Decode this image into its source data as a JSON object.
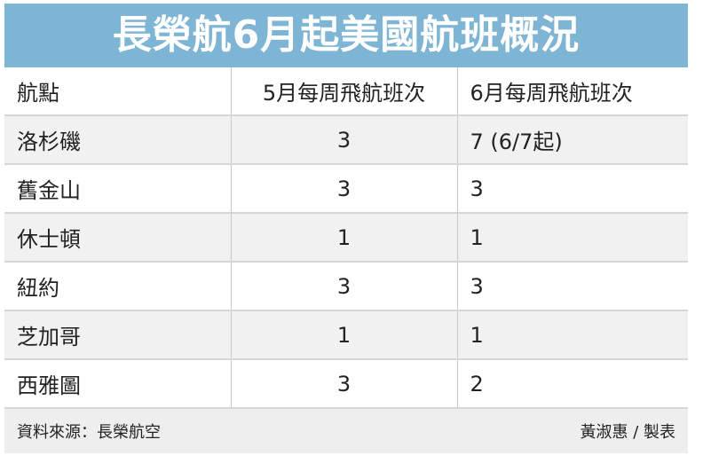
{
  "title": "長榮航6月起美國航班概況",
  "table": {
    "headers": [
      "航點",
      "5月每周飛航班次",
      "6月每周飛航班次"
    ],
    "rows": [
      [
        "洛杉磯",
        "3",
        "7 (6/7起)"
      ],
      [
        "舊金山",
        "3",
        "3"
      ],
      [
        "休士頓",
        "1",
        "1"
      ],
      [
        "紐約",
        "3",
        "3"
      ],
      [
        "芝加哥",
        "1",
        "1"
      ],
      [
        "西雅圖",
        "3",
        "2"
      ]
    ]
  },
  "footer": {
    "source": "資料來源：長榮航空",
    "credit": "黃淑惠 / 製表"
  },
  "colors": {
    "title_bg": "#7eb4d4",
    "alt_row": "#f1f1f1",
    "footer_bg": "#eeeeee"
  }
}
